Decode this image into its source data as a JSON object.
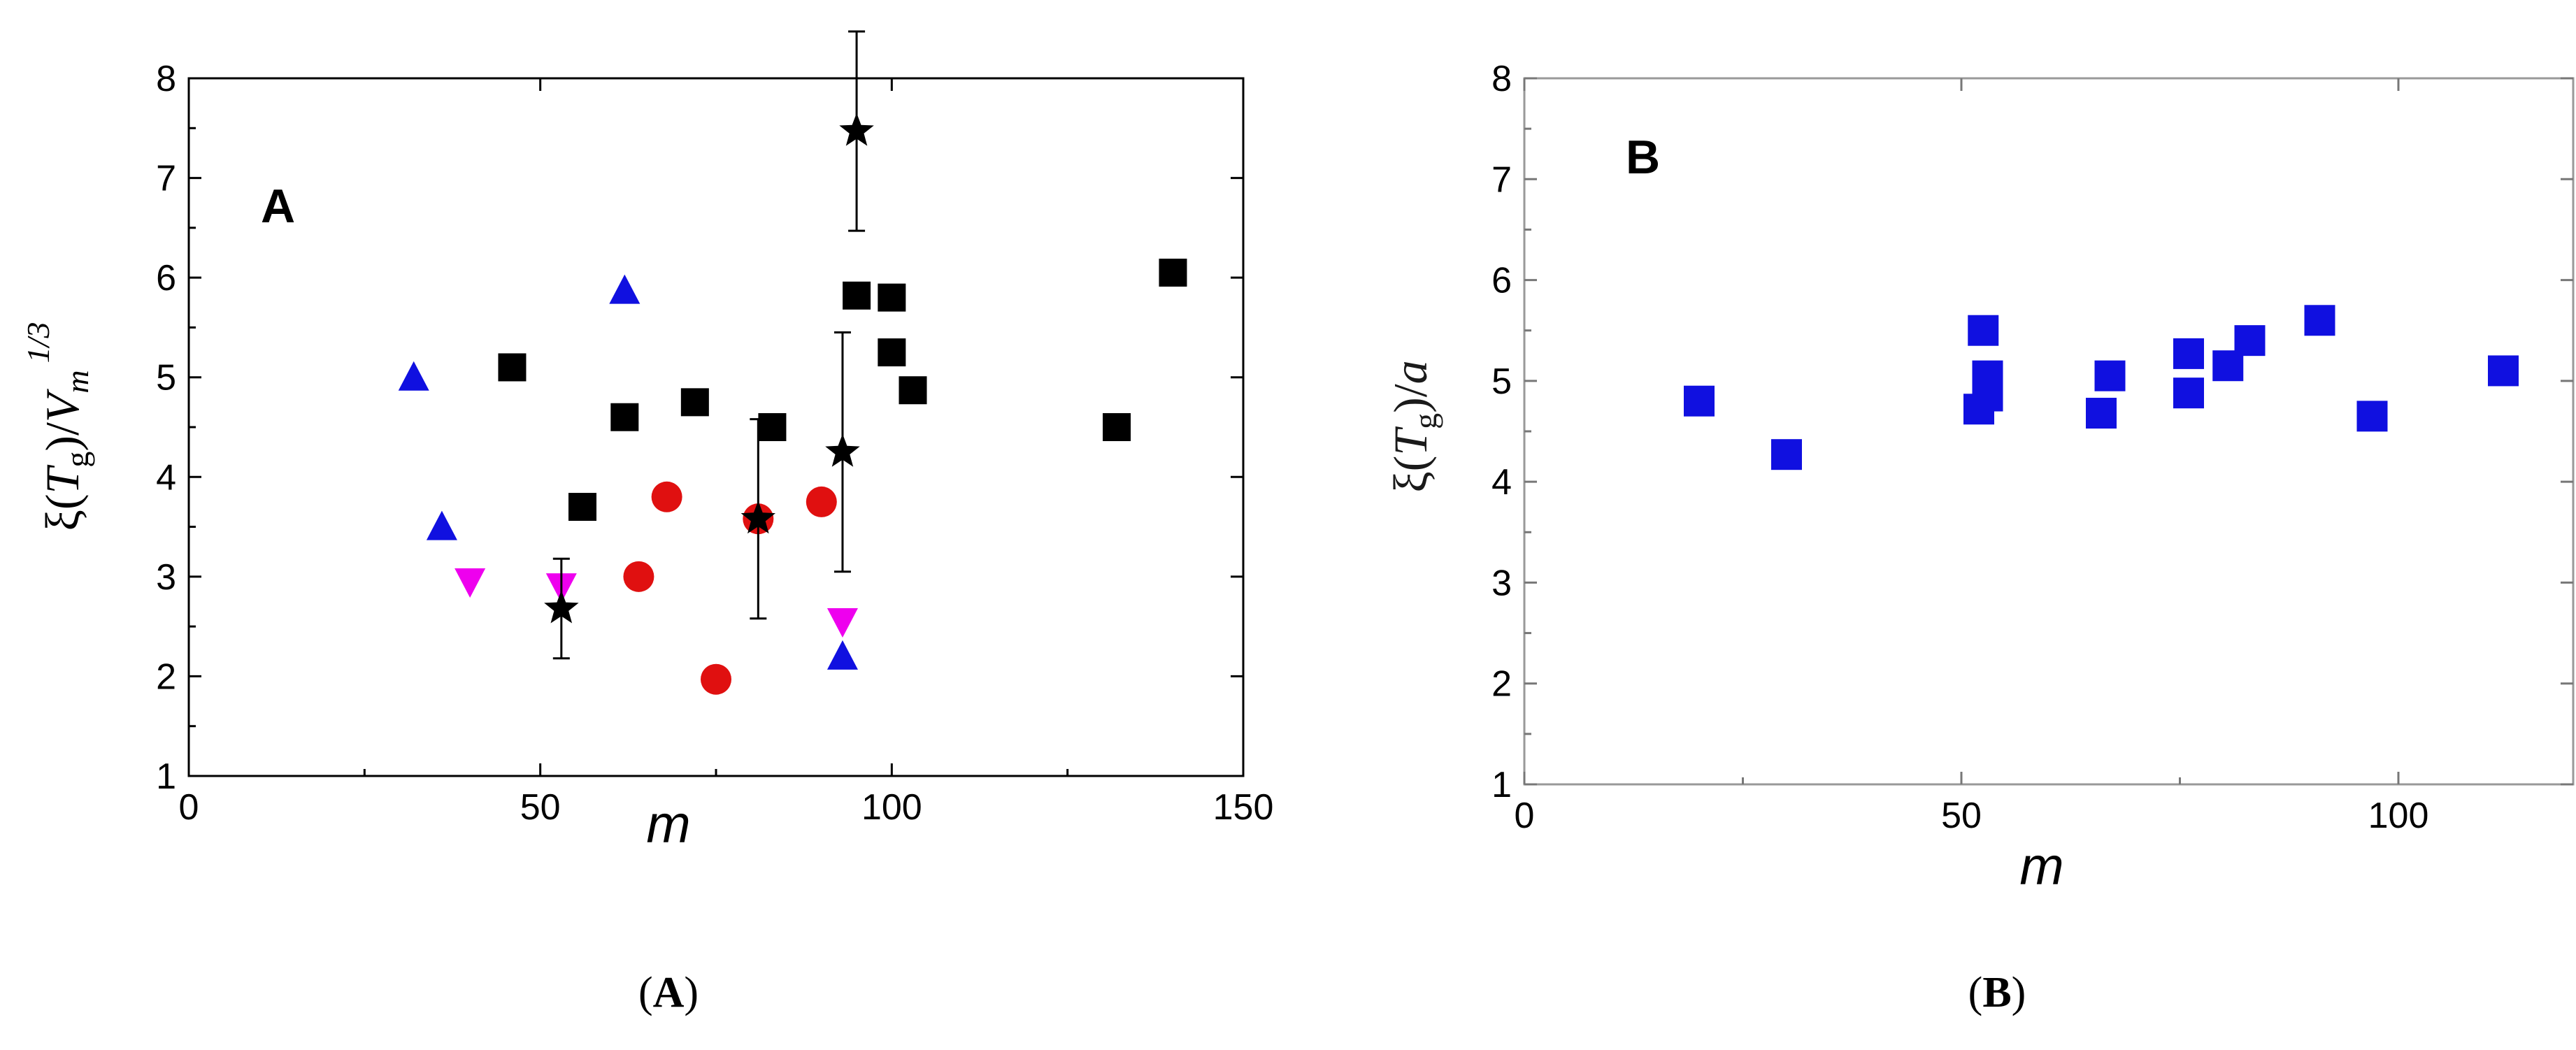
{
  "chart_data": [
    {
      "type": "scatter",
      "panel_label": "A",
      "caption": {
        "open": "(",
        "letter": "A",
        "close": ")"
      },
      "xlabel": "m",
      "ylabel": "ξ(Tg)/Vm1/3",
      "xlim": [
        0,
        150
      ],
      "ylim": [
        1,
        8
      ],
      "xticks": [
        "0",
        "50",
        "100",
        "150"
      ],
      "yticks": [
        "1",
        "2",
        "3",
        "4",
        "5",
        "6",
        "7",
        "8"
      ],
      "grid": false,
      "series": [
        {
          "marker": "square",
          "color": "#000000",
          "points": [
            [
              46,
              5.1
            ],
            [
              56,
              3.7
            ],
            [
              62,
              4.6
            ],
            [
              72,
              4.75
            ],
            [
              83,
              4.5
            ],
            [
              95,
              5.82
            ],
            [
              100,
              5.8
            ],
            [
              100,
              5.25
            ],
            [
              103,
              4.87
            ],
            [
              132,
              4.5
            ],
            [
              140,
              6.05
            ]
          ]
        },
        {
          "marker": "circle",
          "color": "#e01010",
          "points": [
            [
              64,
              3.0
            ],
            [
              68,
              3.8
            ],
            [
              75,
              1.97
            ],
            [
              81,
              3.58
            ],
            [
              90,
              3.75
            ]
          ]
        },
        {
          "marker": "triangle-up",
          "color": "#1010e0",
          "points": [
            [
              32,
              5.0
            ],
            [
              36,
              3.5
            ],
            [
              62,
              5.87
            ],
            [
              93,
              2.2
            ]
          ]
        },
        {
          "marker": "triangle-down",
          "color": "#ee00ee",
          "points": [
            [
              40,
              2.95
            ],
            [
              53,
              2.9
            ],
            [
              93,
              2.55
            ]
          ]
        },
        {
          "marker": "star",
          "color": "#000000",
          "points": [
            [
              53,
              2.68
            ],
            [
              81,
              3.58
            ],
            [
              93,
              4.25
            ],
            [
              95,
              7.47
            ]
          ],
          "error": [
            0.5,
            1.0,
            1.2,
            1.0
          ]
        }
      ]
    },
    {
      "type": "scatter",
      "panel_label": "B",
      "caption": {
        "open": "(",
        "letter": "B",
        "close": ")"
      },
      "xlabel": "m",
      "ylabel": "ξ(Tg)/a",
      "xlim": [
        0,
        120
      ],
      "ylim": [
        1,
        8
      ],
      "xticks": [
        "0",
        "50",
        "100"
      ],
      "yticks": [
        "1",
        "2",
        "3",
        "4",
        "5",
        "6",
        "7",
        "8"
      ],
      "grid": false,
      "series": [
        {
          "marker": "square",
          "color": "#1010e0",
          "points": [
            [
              20,
              4.8
            ],
            [
              30,
              4.27
            ],
            [
              52,
              4.72
            ],
            [
              52.5,
              5.5
            ],
            [
              53,
              5.05
            ],
            [
              53,
              4.85
            ],
            [
              66,
              4.68
            ],
            [
              67,
              5.05
            ],
            [
              76,
              5.27
            ],
            [
              76,
              4.88
            ],
            [
              80.5,
              5.15
            ],
            [
              83,
              5.4
            ],
            [
              91,
              5.6
            ],
            [
              97,
              4.65
            ],
            [
              112,
              5.1
            ]
          ]
        }
      ]
    }
  ]
}
